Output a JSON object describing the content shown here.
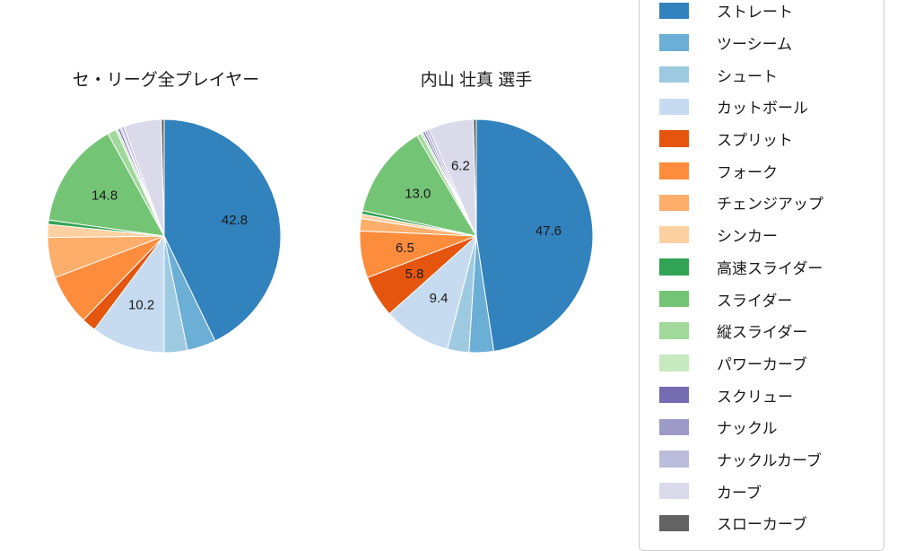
{
  "chart_data": [
    {
      "type": "pie",
      "title": "セ・リーグ全プレイヤー",
      "start_angle": "12-oclock",
      "direction": "clockwise",
      "categories": [
        "ストレート",
        "ツーシーム",
        "シュート",
        "カットボール",
        "スプリット",
        "フォーク",
        "チェンジアップ",
        "シンカー",
        "高速スライダー",
        "スライダー",
        "縦スライダー",
        "パワーカーブ",
        "スクリュー",
        "ナックル",
        "ナックルカーブ",
        "カーブ",
        "スローカーブ"
      ],
      "values": [
        42.8,
        4.0,
        3.2,
        10.2,
        2.0,
        7.0,
        5.6,
        1.8,
        0.6,
        14.8,
        1.2,
        0.3,
        0.3,
        0.2,
        0.4,
        5.2,
        0.4
      ],
      "slice_labels": [
        "42.8",
        "",
        "",
        "10.2",
        "",
        "",
        "",
        "",
        "",
        "14.8",
        "",
        "",
        "",
        "",
        "",
        "",
        ""
      ],
      "colors": [
        "#3182bd",
        "#6baed6",
        "#9ecae1",
        "#c6dbef",
        "#e6550d",
        "#fd8d3c",
        "#fdae6b",
        "#fdd0a2",
        "#31a354",
        "#74c476",
        "#a1d99b",
        "#c7e9c0",
        "#756bb1",
        "#9e9ac8",
        "#bcbddc",
        "#dadaeb",
        "#636363"
      ]
    },
    {
      "type": "pie",
      "title": "内山 壮真  選手",
      "start_angle": "12-oclock",
      "direction": "clockwise",
      "categories": [
        "ストレート",
        "ツーシーム",
        "シュート",
        "カットボール",
        "スプリット",
        "フォーク",
        "チェンジアップ",
        "シンカー",
        "高速スライダー",
        "スライダー",
        "縦スライダー",
        "パワーカーブ",
        "スクリュー",
        "ナックル",
        "ナックルカーブ",
        "カーブ",
        "スローカーブ"
      ],
      "values": [
        47.6,
        3.4,
        3.0,
        9.4,
        5.8,
        6.5,
        1.7,
        0.6,
        0.5,
        13.0,
        0.6,
        0.3,
        0.3,
        0.3,
        0.4,
        6.2,
        0.4
      ],
      "slice_labels": [
        "47.6",
        "",
        "",
        "9.4",
        "5.8",
        "6.5",
        "",
        "",
        "",
        "13.0",
        "",
        "",
        "",
        "",
        "",
        "6.2",
        ""
      ],
      "colors": [
        "#3182bd",
        "#6baed6",
        "#9ecae1",
        "#c6dbef",
        "#e6550d",
        "#fd8d3c",
        "#fdae6b",
        "#fdd0a2",
        "#31a354",
        "#74c476",
        "#a1d99b",
        "#c7e9c0",
        "#756bb1",
        "#9e9ac8",
        "#bcbddc",
        "#dadaeb",
        "#636363"
      ]
    }
  ],
  "legend": {
    "position": "right",
    "items": [
      {
        "label": "ストレート",
        "color": "#3182bd"
      },
      {
        "label": "ツーシーム",
        "color": "#6baed6"
      },
      {
        "label": "シュート",
        "color": "#9ecae1"
      },
      {
        "label": "カットボール",
        "color": "#c6dbef"
      },
      {
        "label": "スプリット",
        "color": "#e6550d"
      },
      {
        "label": "フォーク",
        "color": "#fd8d3c"
      },
      {
        "label": "チェンジアップ",
        "color": "#fdae6b"
      },
      {
        "label": "シンカー",
        "color": "#fdd0a2"
      },
      {
        "label": "高速スライダー",
        "color": "#31a354"
      },
      {
        "label": "スライダー",
        "color": "#74c476"
      },
      {
        "label": "縦スライダー",
        "color": "#a1d99b"
      },
      {
        "label": "パワーカーブ",
        "color": "#c7e9c0"
      },
      {
        "label": "スクリュー",
        "color": "#756bb1"
      },
      {
        "label": "ナックル",
        "color": "#9e9ac8"
      },
      {
        "label": "ナックルカーブ",
        "color": "#bcbddc"
      },
      {
        "label": "カーブ",
        "color": "#dadaeb"
      },
      {
        "label": "スローカーブ",
        "color": "#636363"
      }
    ]
  }
}
